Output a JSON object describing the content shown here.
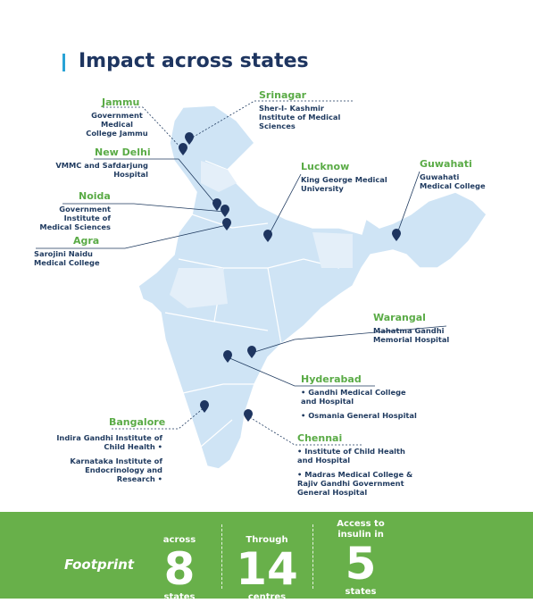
{
  "title": "Impact across states",
  "locations": [
    {
      "city": "Jammu",
      "hospitals": [
        "Government Medical College Jammu"
      ]
    },
    {
      "city": "Srinagar",
      "hospitals": [
        "Sher-I- Kashmir Institute of Medical Sciences"
      ]
    },
    {
      "city": "New Delhi",
      "hospitals": [
        "VMMC and Safdarjung Hospital"
      ]
    },
    {
      "city": "Noida",
      "hospitals": [
        "Government Institute of Medical Sciences"
      ]
    },
    {
      "city": "Agra",
      "hospitals": [
        "Sarojini Naidu Medical College"
      ]
    },
    {
      "city": "Lucknow",
      "hospitals": [
        "King George Medical University"
      ]
    },
    {
      "city": "Guwahati",
      "hospitals": [
        "Guwahati Medical College"
      ]
    },
    {
      "city": "Warangal",
      "hospitals": [
        "Mahatma Gandhi Memorial Hospital"
      ]
    },
    {
      "city": "Hyderabad",
      "hospitals": [
        "Gandhi Medical College and Hospital",
        "Osmania General Hospital"
      ]
    },
    {
      "city": "Bangalore",
      "hospitals": [
        "Indira Gandhi Institute of Child Health",
        "Karnataka Institute of Endocrinology and Research"
      ]
    },
    {
      "city": "Chennai",
      "hospitals": [
        "Institute of Child Health and Hospital",
        "Madras Medical College & Rajiv Gandhi Government General Hospital"
      ]
    }
  ],
  "footer": {
    "label": "Footprint",
    "stats": [
      {
        "top": "across",
        "number": 8,
        "bottom": "states"
      },
      {
        "top": "Through",
        "number": 14,
        "bottom": "centres"
      },
      {
        "top": "Access to insulin in",
        "number": 5,
        "bottom": "states"
      }
    ]
  }
}
